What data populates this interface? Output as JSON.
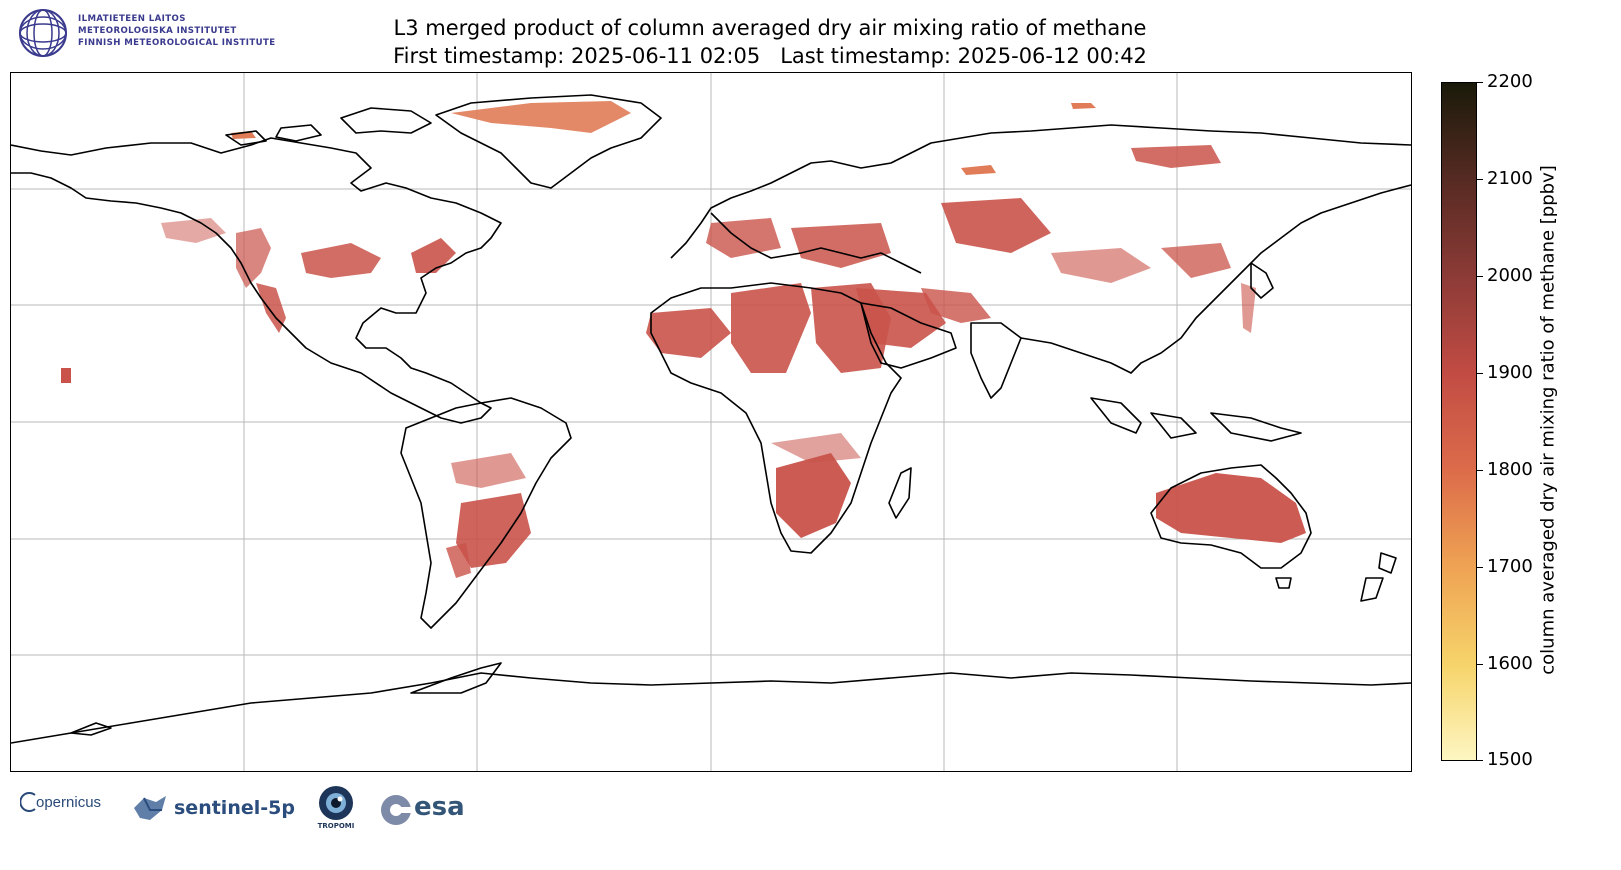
{
  "header": {
    "org_lines": [
      "ILMATIETEEN LAITOS",
      "METEOROLOGISKA INSTITUTET",
      "FINNISH METEOROLOGICAL INSTITUTE"
    ],
    "title_line1": "L3 merged product of column averaged dry air mixing ratio of methane",
    "title_line2": "First timestamp: 2025-06-11 02:05   Last timestamp: 2025-06-12 00:42"
  },
  "colorbar": {
    "label": "column averaged dry air mixing ratio of methane [ppbv]",
    "min": 1500,
    "max": 2200,
    "ticks": [
      "2200",
      "2100",
      "2000",
      "1900",
      "1800",
      "1700",
      "1600",
      "1500"
    ],
    "colormap": [
      "#fdf6c2",
      "#f6d46a",
      "#eea153",
      "#dc6b4a",
      "#c24c44",
      "#8e3b37",
      "#552a22",
      "#1a1a0a"
    ]
  },
  "map": {
    "projection": "plate carree",
    "gridlines": true,
    "coastline_color": "#000000",
    "dominant_value_color": "#c9534a",
    "high_latitude_value_color": "#e07c58"
  },
  "logos": {
    "copernicus": "opernicus",
    "sentinel": "sentinel-5p",
    "tropomi": "TROPOMI",
    "esa": "esa"
  }
}
